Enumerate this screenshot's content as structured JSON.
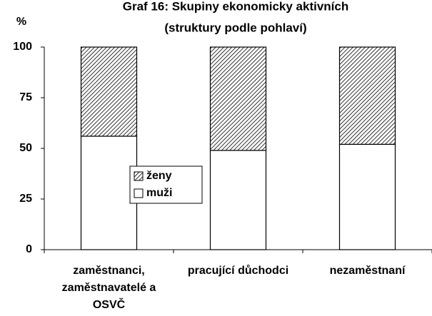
{
  "chart_data": {
    "type": "stacked_bar",
    "title": "Graf 16: Skupiny ekonomicky aktivních",
    "subtitle": "(struktury podle pohlaví)",
    "y_label": "%",
    "categories": [
      "zaměstnanci, zaměstnavatelé a OSVČ",
      "pracující důchodci",
      "nezaměstnaní"
    ],
    "series": [
      {
        "name": "muži",
        "color": "#ffffff",
        "values": [
          56,
          49,
          52
        ]
      },
      {
        "name": "ženy",
        "color": "hatch",
        "values": [
          44,
          51,
          48
        ]
      }
    ],
    "ylim": [
      0,
      100
    ],
    "yticks": [
      0,
      25,
      50,
      75,
      100
    ],
    "grid": false
  }
}
